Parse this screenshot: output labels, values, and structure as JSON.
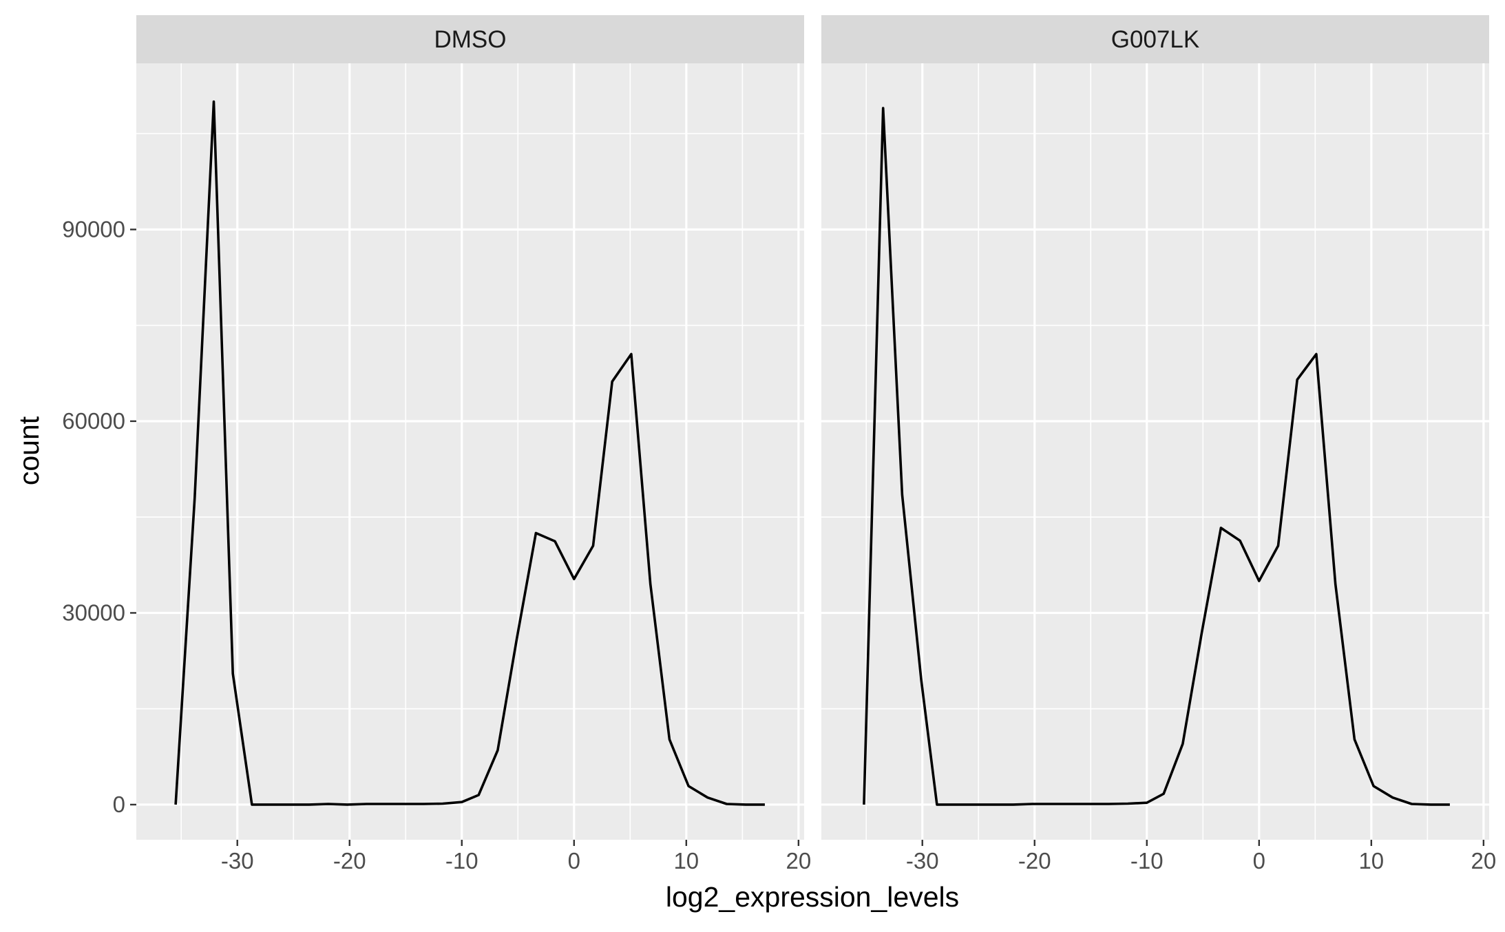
{
  "chart_data": {
    "type": "line",
    "xlabel": "log2_expression_levels",
    "ylabel": "count",
    "xlim": [
      -39,
      20.5
    ],
    "ylim": [
      -5500,
      116000
    ],
    "x_ticks": [
      -30,
      -20,
      -10,
      0,
      10,
      20
    ],
    "x_tick_labels": [
      "-30",
      "-20",
      "-10",
      "0",
      "10",
      "20"
    ],
    "y_ticks": [
      0,
      30000,
      60000,
      90000
    ],
    "y_tick_labels": [
      "0",
      "30000",
      "60000",
      "90000"
    ],
    "grid": true,
    "line_color": "#000000",
    "panel_background": "#ebebeb",
    "strip_background": "#d9d9d9",
    "facets": [
      {
        "label": "DMSO",
        "points": [
          [
            -35.5,
            0
          ],
          [
            -33.8,
            48000
          ],
          [
            -32.1,
            110000
          ],
          [
            -30.4,
            20500
          ],
          [
            -28.7,
            0
          ],
          [
            -27.0,
            0
          ],
          [
            -25.3,
            0
          ],
          [
            -23.6,
            0
          ],
          [
            -21.9,
            100
          ],
          [
            -20.2,
            0
          ],
          [
            -18.5,
            100
          ],
          [
            -16.8,
            100
          ],
          [
            -15.1,
            100
          ],
          [
            -13.4,
            100
          ],
          [
            -11.7,
            150
          ],
          [
            -10.0,
            400
          ],
          [
            -8.5,
            1500
          ],
          [
            -6.8,
            8500
          ],
          [
            -5.1,
            26000
          ],
          [
            -3.4,
            42500
          ],
          [
            -1.7,
            41200
          ],
          [
            0,
            35300
          ],
          [
            1.7,
            40500
          ],
          [
            3.4,
            66200
          ],
          [
            5.1,
            70500
          ],
          [
            6.8,
            34500
          ],
          [
            8.5,
            10200
          ],
          [
            10.2,
            2900
          ],
          [
            11.9,
            1100
          ],
          [
            13.6,
            100
          ],
          [
            15.3,
            0
          ],
          [
            17.0,
            0
          ]
        ]
      },
      {
        "label": "G007LK",
        "points": [
          [
            -35.2,
            0
          ],
          [
            -33.5,
            109000
          ],
          [
            -31.8,
            48500
          ],
          [
            -30.1,
            19500
          ],
          [
            -28.7,
            0
          ],
          [
            -27.0,
            0
          ],
          [
            -25.3,
            0
          ],
          [
            -23.6,
            0
          ],
          [
            -21.9,
            0
          ],
          [
            -20.2,
            100
          ],
          [
            -18.5,
            100
          ],
          [
            -16.8,
            100
          ],
          [
            -15.1,
            100
          ],
          [
            -13.4,
            100
          ],
          [
            -11.7,
            150
          ],
          [
            -10.0,
            300
          ],
          [
            -8.5,
            1700
          ],
          [
            -6.8,
            9500
          ],
          [
            -5.1,
            27000
          ],
          [
            -3.4,
            43300
          ],
          [
            -1.7,
            41300
          ],
          [
            0,
            35000
          ],
          [
            1.7,
            40500
          ],
          [
            3.4,
            66500
          ],
          [
            5.1,
            70500
          ],
          [
            6.8,
            34500
          ],
          [
            8.5,
            10200
          ],
          [
            10.2,
            2900
          ],
          [
            11.9,
            1100
          ],
          [
            13.6,
            100
          ],
          [
            15.3,
            0
          ],
          [
            17.0,
            0
          ]
        ]
      }
    ]
  }
}
